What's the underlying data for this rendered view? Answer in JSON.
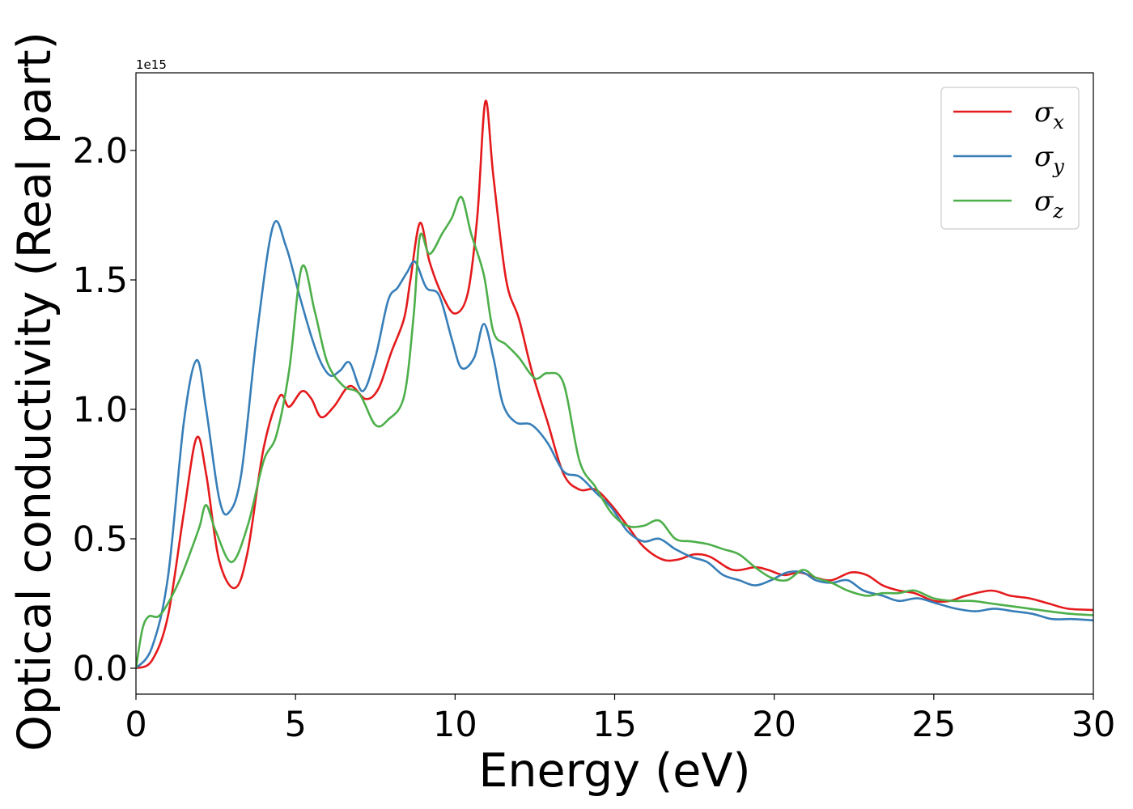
{
  "chart_data": {
    "type": "line",
    "xlabel": "Energy (eV)",
    "ylabel": "Optical conductivity (Real part)",
    "y_offset_text": "1e15",
    "y_multiplier": 1000000000000000.0,
    "xlim": [
      0,
      30
    ],
    "ylim": [
      -0.1,
      2.3
    ],
    "xticks": [
      0,
      5,
      10,
      15,
      20,
      25,
      30
    ],
    "xtick_labels": [
      "0",
      "5",
      "10",
      "15",
      "20",
      "25",
      "30"
    ],
    "yticks": [
      0.0,
      0.5,
      1.0,
      1.5,
      2.0
    ],
    "ytick_labels": [
      "0.0",
      "0.5",
      "1.0",
      "1.5",
      "2.0"
    ],
    "grid": false,
    "legend_position": "top-right",
    "series": [
      {
        "name": "σx",
        "symbol": "σ",
        "subscript": "x",
        "color": "#e41a1c",
        "points": [
          [
            0,
            0
          ],
          [
            0.5,
            0.03
          ],
          [
            1.0,
            0.2
          ],
          [
            1.5,
            0.6
          ],
          [
            1.9,
            0.89
          ],
          [
            2.2,
            0.75
          ],
          [
            2.6,
            0.42
          ],
          [
            3.1,
            0.31
          ],
          [
            3.5,
            0.45
          ],
          [
            4.0,
            0.85
          ],
          [
            4.5,
            1.05
          ],
          [
            4.8,
            1.01
          ],
          [
            5.2,
            1.07
          ],
          [
            5.5,
            1.04
          ],
          [
            5.8,
            0.97
          ],
          [
            6.2,
            1.01
          ],
          [
            6.7,
            1.09
          ],
          [
            7.2,
            1.04
          ],
          [
            7.6,
            1.08
          ],
          [
            8.0,
            1.22
          ],
          [
            8.4,
            1.35
          ],
          [
            8.6,
            1.5
          ],
          [
            8.9,
            1.72
          ],
          [
            9.2,
            1.57
          ],
          [
            9.6,
            1.44
          ],
          [
            10.0,
            1.37
          ],
          [
            10.4,
            1.45
          ],
          [
            10.7,
            1.75
          ],
          [
            10.95,
            2.19
          ],
          [
            11.2,
            1.9
          ],
          [
            11.6,
            1.5
          ],
          [
            12.0,
            1.35
          ],
          [
            12.4,
            1.15
          ],
          [
            12.9,
            0.95
          ],
          [
            13.4,
            0.75
          ],
          [
            13.9,
            0.69
          ],
          [
            14.4,
            0.69
          ],
          [
            14.9,
            0.63
          ],
          [
            15.4,
            0.55
          ],
          [
            15.9,
            0.47
          ],
          [
            16.5,
            0.42
          ],
          [
            17.0,
            0.42
          ],
          [
            17.5,
            0.44
          ],
          [
            18.0,
            0.43
          ],
          [
            18.7,
            0.38
          ],
          [
            19.4,
            0.39
          ],
          [
            19.8,
            0.38
          ],
          [
            20.3,
            0.36
          ],
          [
            20.8,
            0.37
          ],
          [
            21.3,
            0.35
          ],
          [
            21.8,
            0.34
          ],
          [
            22.4,
            0.37
          ],
          [
            22.9,
            0.36
          ],
          [
            23.4,
            0.32
          ],
          [
            23.9,
            0.3
          ],
          [
            24.4,
            0.29
          ],
          [
            25.0,
            0.26
          ],
          [
            25.5,
            0.26
          ],
          [
            26.0,
            0.28
          ],
          [
            26.8,
            0.3
          ],
          [
            27.4,
            0.28
          ],
          [
            28.0,
            0.27
          ],
          [
            28.6,
            0.25
          ],
          [
            29.2,
            0.23
          ],
          [
            30.0,
            0.225
          ]
        ]
      },
      {
        "name": "σy",
        "symbol": "σ",
        "subscript": "y",
        "color": "#377eb8",
        "points": [
          [
            0,
            0
          ],
          [
            0.5,
            0.08
          ],
          [
            1.0,
            0.35
          ],
          [
            1.5,
            0.95
          ],
          [
            1.9,
            1.19
          ],
          [
            2.2,
            1.0
          ],
          [
            2.6,
            0.66
          ],
          [
            2.9,
            0.6
          ],
          [
            3.3,
            0.75
          ],
          [
            3.8,
            1.3
          ],
          [
            4.3,
            1.71
          ],
          [
            4.7,
            1.63
          ],
          [
            5.1,
            1.45
          ],
          [
            5.5,
            1.28
          ],
          [
            5.8,
            1.18
          ],
          [
            6.1,
            1.13
          ],
          [
            6.4,
            1.15
          ],
          [
            6.7,
            1.18
          ],
          [
            7.1,
            1.07
          ],
          [
            7.5,
            1.2
          ],
          [
            7.9,
            1.42
          ],
          [
            8.2,
            1.47
          ],
          [
            8.5,
            1.53
          ],
          [
            8.75,
            1.57
          ],
          [
            9.1,
            1.47
          ],
          [
            9.5,
            1.44
          ],
          [
            9.9,
            1.27
          ],
          [
            10.2,
            1.16
          ],
          [
            10.6,
            1.2
          ],
          [
            10.9,
            1.33
          ],
          [
            11.2,
            1.2
          ],
          [
            11.5,
            1.02
          ],
          [
            11.9,
            0.95
          ],
          [
            12.4,
            0.94
          ],
          [
            12.9,
            0.87
          ],
          [
            13.4,
            0.76
          ],
          [
            13.9,
            0.74
          ],
          [
            14.4,
            0.68
          ],
          [
            14.9,
            0.62
          ],
          [
            15.4,
            0.53
          ],
          [
            15.9,
            0.49
          ],
          [
            16.4,
            0.5
          ],
          [
            16.9,
            0.46
          ],
          [
            17.4,
            0.43
          ],
          [
            17.9,
            0.41
          ],
          [
            18.4,
            0.36
          ],
          [
            18.9,
            0.34
          ],
          [
            19.4,
            0.32
          ],
          [
            19.9,
            0.34
          ],
          [
            20.4,
            0.37
          ],
          [
            20.9,
            0.37
          ],
          [
            21.3,
            0.34
          ],
          [
            21.8,
            0.33
          ],
          [
            22.3,
            0.34
          ],
          [
            22.8,
            0.3
          ],
          [
            23.4,
            0.28
          ],
          [
            23.9,
            0.26
          ],
          [
            24.5,
            0.27
          ],
          [
            25.1,
            0.25
          ],
          [
            25.7,
            0.23
          ],
          [
            26.3,
            0.22
          ],
          [
            26.9,
            0.23
          ],
          [
            27.5,
            0.22
          ],
          [
            28.1,
            0.21
          ],
          [
            28.7,
            0.19
          ],
          [
            29.3,
            0.19
          ],
          [
            30.0,
            0.185
          ]
        ]
      },
      {
        "name": "σz",
        "symbol": "σ",
        "subscript": "z",
        "color": "#4daf4a",
        "points": [
          [
            0,
            0
          ],
          [
            0.2,
            0.15
          ],
          [
            0.4,
            0.2
          ],
          [
            0.7,
            0.2
          ],
          [
            1.0,
            0.25
          ],
          [
            1.4,
            0.35
          ],
          [
            1.8,
            0.48
          ],
          [
            2.0,
            0.55
          ],
          [
            2.2,
            0.63
          ],
          [
            2.5,
            0.53
          ],
          [
            3.0,
            0.41
          ],
          [
            3.5,
            0.55
          ],
          [
            4.0,
            0.8
          ],
          [
            4.4,
            0.9
          ],
          [
            4.8,
            1.15
          ],
          [
            5.2,
            1.55
          ],
          [
            5.6,
            1.38
          ],
          [
            6.0,
            1.18
          ],
          [
            6.5,
            1.09
          ],
          [
            7.0,
            1.06
          ],
          [
            7.5,
            0.94
          ],
          [
            7.9,
            0.96
          ],
          [
            8.4,
            1.05
          ],
          [
            8.7,
            1.36
          ],
          [
            8.9,
            1.67
          ],
          [
            9.2,
            1.6
          ],
          [
            9.6,
            1.68
          ],
          [
            9.9,
            1.74
          ],
          [
            10.2,
            1.82
          ],
          [
            10.5,
            1.68
          ],
          [
            10.9,
            1.52
          ],
          [
            11.2,
            1.3
          ],
          [
            11.6,
            1.25
          ],
          [
            12.0,
            1.2
          ],
          [
            12.5,
            1.12
          ],
          [
            12.9,
            1.14
          ],
          [
            13.4,
            1.1
          ],
          [
            13.9,
            0.8
          ],
          [
            14.4,
            0.7
          ],
          [
            14.9,
            0.6
          ],
          [
            15.4,
            0.55
          ],
          [
            15.9,
            0.55
          ],
          [
            16.4,
            0.57
          ],
          [
            16.9,
            0.5
          ],
          [
            17.4,
            0.49
          ],
          [
            17.9,
            0.48
          ],
          [
            18.4,
            0.46
          ],
          [
            18.9,
            0.44
          ],
          [
            19.4,
            0.39
          ],
          [
            19.9,
            0.35
          ],
          [
            20.4,
            0.34
          ],
          [
            20.9,
            0.38
          ],
          [
            21.3,
            0.35
          ],
          [
            21.8,
            0.33
          ],
          [
            22.3,
            0.3
          ],
          [
            22.9,
            0.28
          ],
          [
            23.4,
            0.29
          ],
          [
            23.9,
            0.29
          ],
          [
            24.4,
            0.3
          ],
          [
            25.0,
            0.27
          ],
          [
            25.6,
            0.26
          ],
          [
            26.2,
            0.26
          ],
          [
            26.8,
            0.25
          ],
          [
            27.4,
            0.24
          ],
          [
            28.0,
            0.23
          ],
          [
            28.6,
            0.22
          ],
          [
            29.3,
            0.21
          ],
          [
            30.0,
            0.205
          ]
        ]
      }
    ]
  }
}
